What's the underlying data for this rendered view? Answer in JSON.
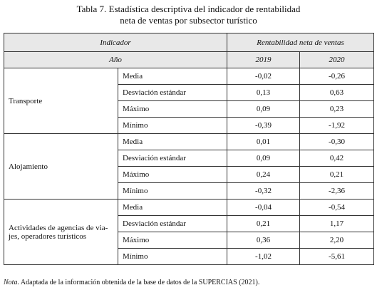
{
  "title": {
    "lines": [
      "Tabla 7. Estadística descriptiva del indicador de rentabilidad",
      "neta de ventas por subsector turístico"
    ]
  },
  "table": {
    "header": {
      "indicator": "Indicador",
      "measure": "Rentabilidad neta de ventas",
      "year_label": "Año",
      "years": [
        "2019",
        "2020"
      ]
    },
    "groups": [
      {
        "label_lines": [
          "Transporte"
        ],
        "rows": [
          [
            "Media",
            "-0,02",
            "-0,26"
          ],
          [
            "Desviación estándar",
            "0,13",
            "0,63"
          ],
          [
            "Máximo",
            "0,09",
            "0,23"
          ],
          [
            "Mínimo",
            "-0,39",
            "-1,92"
          ]
        ]
      },
      {
        "label_lines": [
          "Alojamiento"
        ],
        "rows": [
          [
            "Media",
            "0,01",
            "-0,30"
          ],
          [
            "Desviación estándar",
            "0,09",
            "0,42"
          ],
          [
            "Máximo",
            "0,24",
            "0,21"
          ],
          [
            "Mínimo",
            "-0,32",
            "-2,36"
          ]
        ]
      },
      {
        "label_lines": [
          "Actividades de agencias de via-",
          "jes, operadores turísticos"
        ],
        "rows": [
          [
            "Media",
            "-0,04",
            "-0,54"
          ],
          [
            "Desviación estándar",
            "0,21",
            "1,17"
          ],
          [
            "Máximo",
            "0,36",
            "2,20"
          ],
          [
            "Mínimo",
            "-1,02",
            "-5,61"
          ]
        ]
      }
    ]
  },
  "note": {
    "label": "Nota.",
    "text": "Adaptada de la información obtenida de la base de datos de la SUPERCIAS (2021)."
  }
}
